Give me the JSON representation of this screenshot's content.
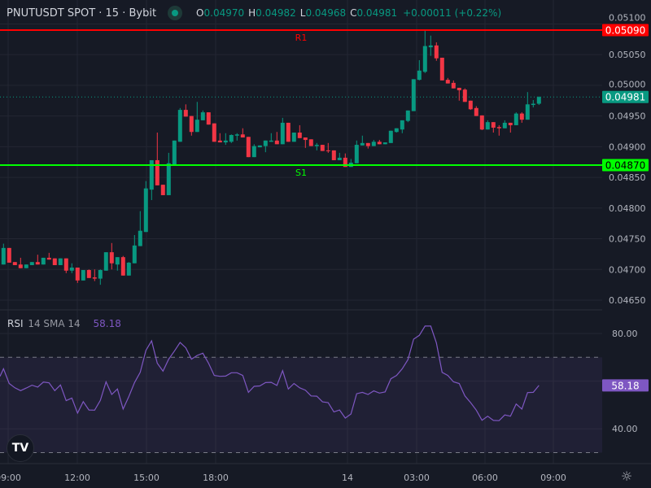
{
  "header": {
    "title": "PNUTUSDT SPOT · 15 · Bybit",
    "status_color": "#089981",
    "ohlc": [
      {
        "key": "O",
        "value": "0.04970"
      },
      {
        "key": "H",
        "value": "0.04982"
      },
      {
        "key": "L",
        "value": "0.04968"
      },
      {
        "key": "C",
        "value": "0.04981"
      }
    ],
    "change": "+0.00011 (+0.22%)"
  },
  "colors": {
    "background": "#161a25",
    "grid": "#232632",
    "up": "#089981",
    "down": "#f23645",
    "rsi": "#7e57c2",
    "resistance": "#ff0000",
    "support": "#00ff00"
  },
  "price_axis": {
    "ticks": [
      "0.05100",
      "0.05050",
      "0.05000",
      "0.04950",
      "0.04900",
      "0.04850",
      "0.04800",
      "0.04750",
      "0.04700",
      "0.04650"
    ],
    "last_price": "0.04981"
  },
  "levels": [
    {
      "name": "R1",
      "price": "0.05090",
      "color": "#ff0000"
    },
    {
      "name": "S1",
      "price": "0.04870",
      "color": "#00ff00"
    }
  ],
  "time_axis": {
    "ticks": [
      "09:00",
      "12:00",
      "15:00",
      "18:00",
      "14",
      "03:00",
      "06:00",
      "09:00"
    ]
  },
  "rsi": {
    "name": "RSI",
    "params": "14 SMA 14",
    "value": "58.18",
    "ticks": [
      "80.00",
      "40.00"
    ],
    "upper_band": 70,
    "lower_band": 30,
    "values": [
      65.2,
      59.0,
      57.2,
      56.0,
      57.1,
      58.3,
      57.5,
      59.6,
      59.3,
      56.0,
      58.4,
      51.8,
      52.9,
      46.6,
      51.4,
      47.9,
      47.8,
      51.9,
      59.7,
      54.4,
      56.7,
      48.3,
      53.5,
      59.4,
      63.7,
      72.9,
      76.9,
      67.5,
      64.2,
      69.2,
      72.6,
      76.2,
      74.0,
      69.2,
      70.8,
      71.7,
      67.5,
      62.4,
      62.0,
      62.1,
      63.5,
      63.5,
      62.4,
      55.3,
      57.8,
      58.0,
      59.4,
      59.5,
      58.2,
      64.4,
      56.7,
      59.0,
      57.2,
      56.2,
      53.8,
      53.7,
      51.3,
      51.0,
      47.1,
      47.9,
      44.5,
      46.2,
      54.7,
      55.3,
      54.4,
      55.9,
      55.0,
      55.5,
      61.0,
      62.4,
      65.2,
      69.0,
      77.6,
      79.2,
      83.1,
      83.1,
      76.0,
      63.7,
      62.4,
      59.7,
      59.0,
      53.8,
      51.0,
      47.8,
      43.6,
      45.3,
      43.5,
      43.4,
      45.8,
      45.3,
      50.4,
      48.3,
      55.2,
      55.3,
      58.18
    ]
  },
  "candles": [
    [
      0.04708,
      0.04742,
      0.04708,
      0.04735
    ],
    [
      0.04735,
      0.04735,
      0.04711,
      0.04711
    ],
    [
      0.04712,
      0.04712,
      0.04707,
      0.04707
    ],
    [
      0.04708,
      0.04719,
      0.04702,
      0.04702
    ],
    [
      0.04702,
      0.04708,
      0.04702,
      0.04708
    ],
    [
      0.04707,
      0.04712,
      0.04707,
      0.04712
    ],
    [
      0.04712,
      0.04724,
      0.04708,
      0.04708
    ],
    [
      0.04708,
      0.04719,
      0.04708,
      0.04719
    ],
    [
      0.04719,
      0.04727,
      0.04716,
      0.04716
    ],
    [
      0.04718,
      0.04718,
      0.04707,
      0.04707
    ],
    [
      0.04707,
      0.04718,
      0.04707,
      0.04718
    ],
    [
      0.04718,
      0.04718,
      0.04694,
      0.04698
    ],
    [
      0.04698,
      0.0471,
      0.04694,
      0.04703
    ],
    [
      0.04703,
      0.04703,
      0.04678,
      0.04682
    ],
    [
      0.04682,
      0.04699,
      0.04682,
      0.04699
    ],
    [
      0.04699,
      0.047,
      0.04686,
      0.04686
    ],
    [
      0.04687,
      0.047,
      0.04681,
      0.04685
    ],
    [
      0.04685,
      0.047,
      0.04675,
      0.04699
    ],
    [
      0.04698,
      0.04728,
      0.04698,
      0.04728
    ],
    [
      0.04728,
      0.04743,
      0.047,
      0.0471
    ],
    [
      0.04708,
      0.0472,
      0.04698,
      0.0472
    ],
    [
      0.0472,
      0.04722,
      0.0469,
      0.0469
    ],
    [
      0.0469,
      0.04712,
      0.0469,
      0.04711
    ],
    [
      0.0471,
      0.04756,
      0.0471,
      0.04739
    ],
    [
      0.04738,
      0.04795,
      0.04738,
      0.04763
    ],
    [
      0.04761,
      0.04844,
      0.04761,
      0.04832
    ],
    [
      0.0483,
      0.04878,
      0.04813,
      0.04878
    ],
    [
      0.04878,
      0.04923,
      0.04837,
      0.04837
    ],
    [
      0.04838,
      0.04838,
      0.04821,
      0.04821
    ],
    [
      0.04821,
      0.0489,
      0.04821,
      0.04873
    ],
    [
      0.04871,
      0.0491,
      0.04871,
      0.0491
    ],
    [
      0.04908,
      0.04963,
      0.04908,
      0.0496
    ],
    [
      0.0496,
      0.04969,
      0.04949,
      0.04949
    ],
    [
      0.0495,
      0.0495,
      0.04918,
      0.04924
    ],
    [
      0.04924,
      0.04973,
      0.04924,
      0.04944
    ],
    [
      0.04943,
      0.04959,
      0.04943,
      0.04956
    ],
    [
      0.04956,
      0.04956,
      0.04936,
      0.04936
    ],
    [
      0.04938,
      0.04938,
      0.04908,
      0.04908
    ],
    [
      0.0491,
      0.04922,
      0.04907,
      0.04907
    ],
    [
      0.04907,
      0.04922,
      0.04903,
      0.0491
    ],
    [
      0.04908,
      0.0492,
      0.04906,
      0.04919
    ],
    [
      0.04918,
      0.04922,
      0.0491,
      0.0492
    ],
    [
      0.0492,
      0.0493,
      0.04915,
      0.04915
    ],
    [
      0.04916,
      0.04916,
      0.04883,
      0.04883
    ],
    [
      0.04883,
      0.04904,
      0.04883,
      0.04901
    ],
    [
      0.04899,
      0.04902,
      0.04899,
      0.04902
    ],
    [
      0.04901,
      0.0491,
      0.04891,
      0.0491
    ],
    [
      0.04908,
      0.04922,
      0.04908,
      0.0491
    ],
    [
      0.0491,
      0.04924,
      0.04904,
      0.04904
    ],
    [
      0.04904,
      0.04947,
      0.04904,
      0.04939
    ],
    [
      0.04939,
      0.04939,
      0.04908,
      0.04908
    ],
    [
      0.04908,
      0.04923,
      0.04908,
      0.04923
    ],
    [
      0.04923,
      0.04935,
      0.04914,
      0.04914
    ],
    [
      0.04915,
      0.04915,
      0.04898,
      0.04911
    ],
    [
      0.04912,
      0.04912,
      0.04901,
      0.04901
    ],
    [
      0.04901,
      0.04906,
      0.04894,
      0.04903
    ],
    [
      0.04903,
      0.04903,
      0.04893,
      0.04893
    ],
    [
      0.04894,
      0.04906,
      0.0489,
      0.04893
    ],
    [
      0.04894,
      0.04894,
      0.04878,
      0.04878
    ],
    [
      0.04878,
      0.0489,
      0.04878,
      0.04882
    ],
    [
      0.04882,
      0.04889,
      0.04867,
      0.04867
    ],
    [
      0.04867,
      0.0488,
      0.04867,
      0.04874
    ],
    [
      0.04873,
      0.0491,
      0.04873,
      0.04903
    ],
    [
      0.04902,
      0.04918,
      0.04902,
      0.04906
    ],
    [
      0.04906,
      0.04906,
      0.04897,
      0.04901
    ],
    [
      0.04901,
      0.04911,
      0.04901,
      0.04908
    ],
    [
      0.04908,
      0.04911,
      0.04904,
      0.04904
    ],
    [
      0.04904,
      0.04907,
      0.04904,
      0.04907
    ],
    [
      0.04906,
      0.04926,
      0.04906,
      0.04926
    ],
    [
      0.04924,
      0.0493,
      0.04923,
      0.0493
    ],
    [
      0.04928,
      0.04943,
      0.04922,
      0.04943
    ],
    [
      0.04942,
      0.04959,
      0.0494,
      0.04959
    ],
    [
      0.04958,
      0.0501,
      0.04958,
      0.0501
    ],
    [
      0.05009,
      0.05041,
      0.05008,
      0.05024
    ],
    [
      0.05022,
      0.05089,
      0.0502,
      0.05064
    ],
    [
      0.05062,
      0.05081,
      0.05048,
      0.05065
    ],
    [
      0.05065,
      0.0507,
      0.0504,
      0.05044
    ],
    [
      0.05045,
      0.05045,
      0.05008,
      0.05008
    ],
    [
      0.05009,
      0.05012,
      0.05003,
      0.05003
    ],
    [
      0.05004,
      0.05008,
      0.04995,
      0.04995
    ],
    [
      0.04996,
      0.04996,
      0.04975,
      0.04992
    ],
    [
      0.04993,
      0.04995,
      0.04973,
      0.04973
    ],
    [
      0.04975,
      0.04975,
      0.0496,
      0.04961
    ],
    [
      0.04963,
      0.04966,
      0.0495,
      0.0495
    ],
    [
      0.04951,
      0.04951,
      0.04927,
      0.04928
    ],
    [
      0.04928,
      0.04943,
      0.04928,
      0.0494
    ],
    [
      0.0494,
      0.0494,
      0.04923,
      0.04931
    ],
    [
      0.04932,
      0.04935,
      0.04918,
      0.0493
    ],
    [
      0.0493,
      0.04943,
      0.0493,
      0.04939
    ],
    [
      0.04939,
      0.04939,
      0.04923,
      0.04935
    ],
    [
      0.04935,
      0.04956,
      0.04935,
      0.04954
    ],
    [
      0.04954,
      0.04956,
      0.04939,
      0.04944
    ],
    [
      0.04944,
      0.04989,
      0.04944,
      0.04969
    ],
    [
      0.04968,
      0.04976,
      0.04964,
      0.0497
    ],
    [
      0.0497,
      0.04982,
      0.04968,
      0.04981
    ]
  ]
}
